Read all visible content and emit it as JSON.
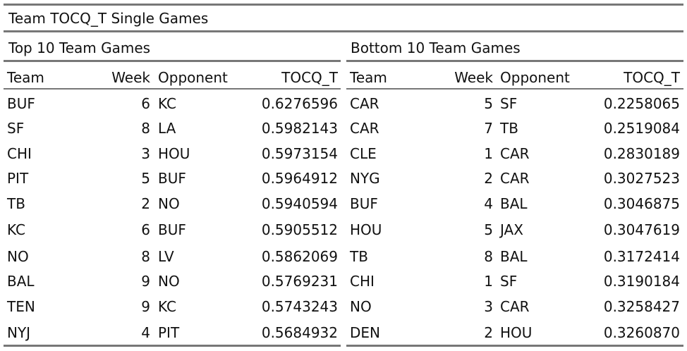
{
  "title": "Team TOCQ_T Single Games",
  "tables": [
    {
      "subtitle": "Top 10 Team Games",
      "columns": [
        "Team",
        "Week",
        "Opponent",
        "TOCQ_T"
      ],
      "rows": [
        [
          "BUF",
          "6",
          "KC",
          "0.6276596"
        ],
        [
          "SF",
          "8",
          "LA",
          "0.5982143"
        ],
        [
          "CHI",
          "3",
          "HOU",
          "0.5973154"
        ],
        [
          "PIT",
          "5",
          "BUF",
          "0.5964912"
        ],
        [
          "TB",
          "2",
          "NO",
          "0.5940594"
        ],
        [
          "KC",
          "6",
          "BUF",
          "0.5905512"
        ],
        [
          "NO",
          "8",
          "LV",
          "0.5862069"
        ],
        [
          "BAL",
          "9",
          "NO",
          "0.5769231"
        ],
        [
          "TEN",
          "9",
          "KC",
          "0.5743243"
        ],
        [
          "NYJ",
          "4",
          "PIT",
          "0.5684932"
        ]
      ]
    },
    {
      "subtitle": "Bottom 10 Team Games",
      "columns": [
        "Team",
        "Week",
        "Opponent",
        "TOCQ_T"
      ],
      "rows": [
        [
          "CAR",
          "5",
          "SF",
          "0.2258065"
        ],
        [
          "CAR",
          "7",
          "TB",
          "0.2519084"
        ],
        [
          "CLE",
          "1",
          "CAR",
          "0.2830189"
        ],
        [
          "NYG",
          "2",
          "CAR",
          "0.3027523"
        ],
        [
          "BUF",
          "4",
          "BAL",
          "0.3046875"
        ],
        [
          "HOU",
          "5",
          "JAX",
          "0.3047619"
        ],
        [
          "TB",
          "8",
          "BAL",
          "0.3172414"
        ],
        [
          "CHI",
          "1",
          "SF",
          "0.3190184"
        ],
        [
          "NO",
          "3",
          "CAR",
          "0.3258427"
        ],
        [
          "DEN",
          "2",
          "HOU",
          "0.3260870"
        ]
      ]
    }
  ]
}
